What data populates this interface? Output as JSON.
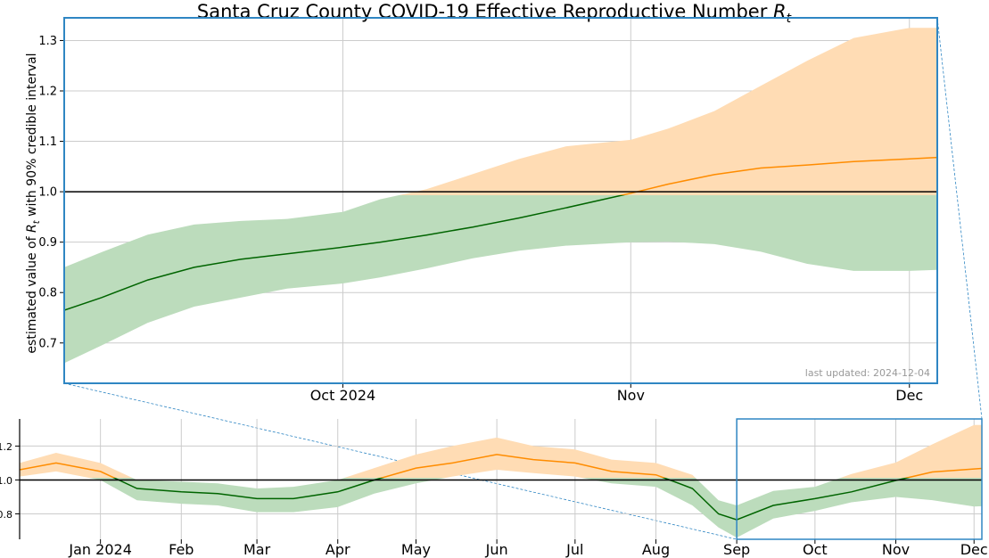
{
  "title": "Santa Cruz County COVID-19 Effective Reproductive Number ",
  "title_symbol": "R",
  "title_subscript": "t",
  "ylabel": "estimated value of ",
  "ylabel_symbol": "R",
  "ylabel_subscript": "t",
  "ylabel_rest": " with 90% credible interval",
  "last_updated": "last updated: 2024-12-04",
  "colors": {
    "above_one_line": "#ff8c00",
    "above_one_band": "#ffdcb4",
    "below_one_line": "#006400",
    "below_one_band": "#bcdcbc",
    "frame": "#2f86c3",
    "grid": "#cccccc",
    "reference_line": "#000000"
  },
  "chart_data": [
    {
      "type": "line",
      "name": "main",
      "xlabel": "",
      "ylabel": "estimated value of R_t with 90% credible interval",
      "x_range": [
        "2024-09-01",
        "2024-12-04"
      ],
      "ylim": [
        0.62,
        1.345
      ],
      "yticks": [
        0.7,
        0.8,
        0.9,
        1.0,
        1.1,
        1.2,
        1.3
      ],
      "xticks": [
        {
          "date": "2024-10-01",
          "label": "Oct 2024"
        },
        {
          "date": "2024-11-01",
          "label": "Nov"
        },
        {
          "date": "2024-12-01",
          "label": "Dec"
        }
      ],
      "reference_line": 1.0,
      "grid": true,
      "series": [
        {
          "x": [
            "2024-09-01",
            "2024-09-05",
            "2024-09-10",
            "2024-09-15",
            "2024-09-20",
            "2024-09-25",
            "2024-10-01",
            "2024-10-05",
            "2024-10-10",
            "2024-10-15",
            "2024-10-20",
            "2024-10-25",
            "2024-11-01",
            "2024-11-05",
            "2024-11-10",
            "2024-11-15",
            "2024-11-20",
            "2024-11-25",
            "2024-12-01",
            "2024-12-04"
          ],
          "median": [
            0.765,
            0.79,
            0.825,
            0.85,
            0.866,
            0.877,
            0.89,
            0.9,
            0.914,
            0.93,
            0.948,
            0.968,
            0.997,
            1.015,
            1.034,
            1.047,
            1.053,
            1.06,
            1.065,
            1.068
          ],
          "lower": [
            0.66,
            0.695,
            0.74,
            0.772,
            0.79,
            0.808,
            0.818,
            0.83,
            0.848,
            0.868,
            0.883,
            0.893,
            0.9,
            0.901,
            0.896,
            0.881,
            0.857,
            0.843,
            0.843,
            0.845
          ],
          "upper": [
            0.85,
            0.88,
            0.915,
            0.935,
            0.942,
            0.946,
            0.96,
            0.985,
            1.005,
            1.035,
            1.065,
            1.09,
            1.103,
            1.125,
            1.16,
            1.21,
            1.26,
            1.305,
            1.325,
            1.325
          ]
        }
      ]
    },
    {
      "type": "line",
      "name": "overview",
      "xlabel": "",
      "ylabel": "",
      "x_range": [
        "2023-12-01",
        "2024-12-04"
      ],
      "ylim": [
        0.65,
        1.36
      ],
      "yticks": [
        0.8,
        1.0,
        1.2
      ],
      "xticks": [
        {
          "date": "2024-01-01",
          "label": "Jan 2024"
        },
        {
          "date": "2024-02-01",
          "label": "Feb"
        },
        {
          "date": "2024-03-01",
          "label": "Mar"
        },
        {
          "date": "2024-04-01",
          "label": "Apr"
        },
        {
          "date": "2024-05-01",
          "label": "May"
        },
        {
          "date": "2024-06-01",
          "label": "Jun"
        },
        {
          "date": "2024-07-01",
          "label": "Jul"
        },
        {
          "date": "2024-08-01",
          "label": "Aug"
        },
        {
          "date": "2024-09-01",
          "label": "Sep"
        },
        {
          "date": "2024-10-01",
          "label": "Oct"
        },
        {
          "date": "2024-11-01",
          "label": "Nov"
        },
        {
          "date": "2024-12-01",
          "label": "Dec"
        }
      ],
      "reference_line": 1.0,
      "zoom_window": [
        "2024-09-01",
        "2024-12-04"
      ],
      "grid": true,
      "series": [
        {
          "x": [
            "2023-12-01",
            "2023-12-15",
            "2024-01-01",
            "2024-01-15",
            "2024-02-01",
            "2024-02-15",
            "2024-03-01",
            "2024-03-15",
            "2024-04-01",
            "2024-04-15",
            "2024-05-01",
            "2024-05-15",
            "2024-06-01",
            "2024-06-15",
            "2024-07-01",
            "2024-07-15",
            "2024-08-01",
            "2024-08-15",
            "2024-08-25",
            "2024-09-01",
            "2024-09-15",
            "2024-10-01",
            "2024-10-15",
            "2024-11-01",
            "2024-11-15",
            "2024-12-01",
            "2024-12-04"
          ],
          "median": [
            1.06,
            1.1,
            1.05,
            0.95,
            0.93,
            0.92,
            0.89,
            0.89,
            0.93,
            1.0,
            1.07,
            1.1,
            1.15,
            1.12,
            1.1,
            1.05,
            1.03,
            0.95,
            0.8,
            0.765,
            0.85,
            0.89,
            0.93,
            0.997,
            1.047,
            1.065,
            1.068
          ],
          "lower": [
            1.02,
            1.05,
            1.0,
            0.88,
            0.86,
            0.85,
            0.81,
            0.81,
            0.84,
            0.92,
            0.98,
            1.02,
            1.06,
            1.04,
            1.02,
            0.98,
            0.96,
            0.85,
            0.72,
            0.66,
            0.772,
            0.818,
            0.868,
            0.9,
            0.881,
            0.843,
            0.845
          ],
          "upper": [
            1.1,
            1.16,
            1.1,
            1.0,
            0.99,
            0.98,
            0.95,
            0.96,
            1.0,
            1.07,
            1.15,
            1.2,
            1.25,
            1.2,
            1.18,
            1.12,
            1.1,
            1.03,
            0.88,
            0.85,
            0.935,
            0.96,
            1.035,
            1.103,
            1.21,
            1.325,
            1.325
          ]
        }
      ]
    }
  ]
}
